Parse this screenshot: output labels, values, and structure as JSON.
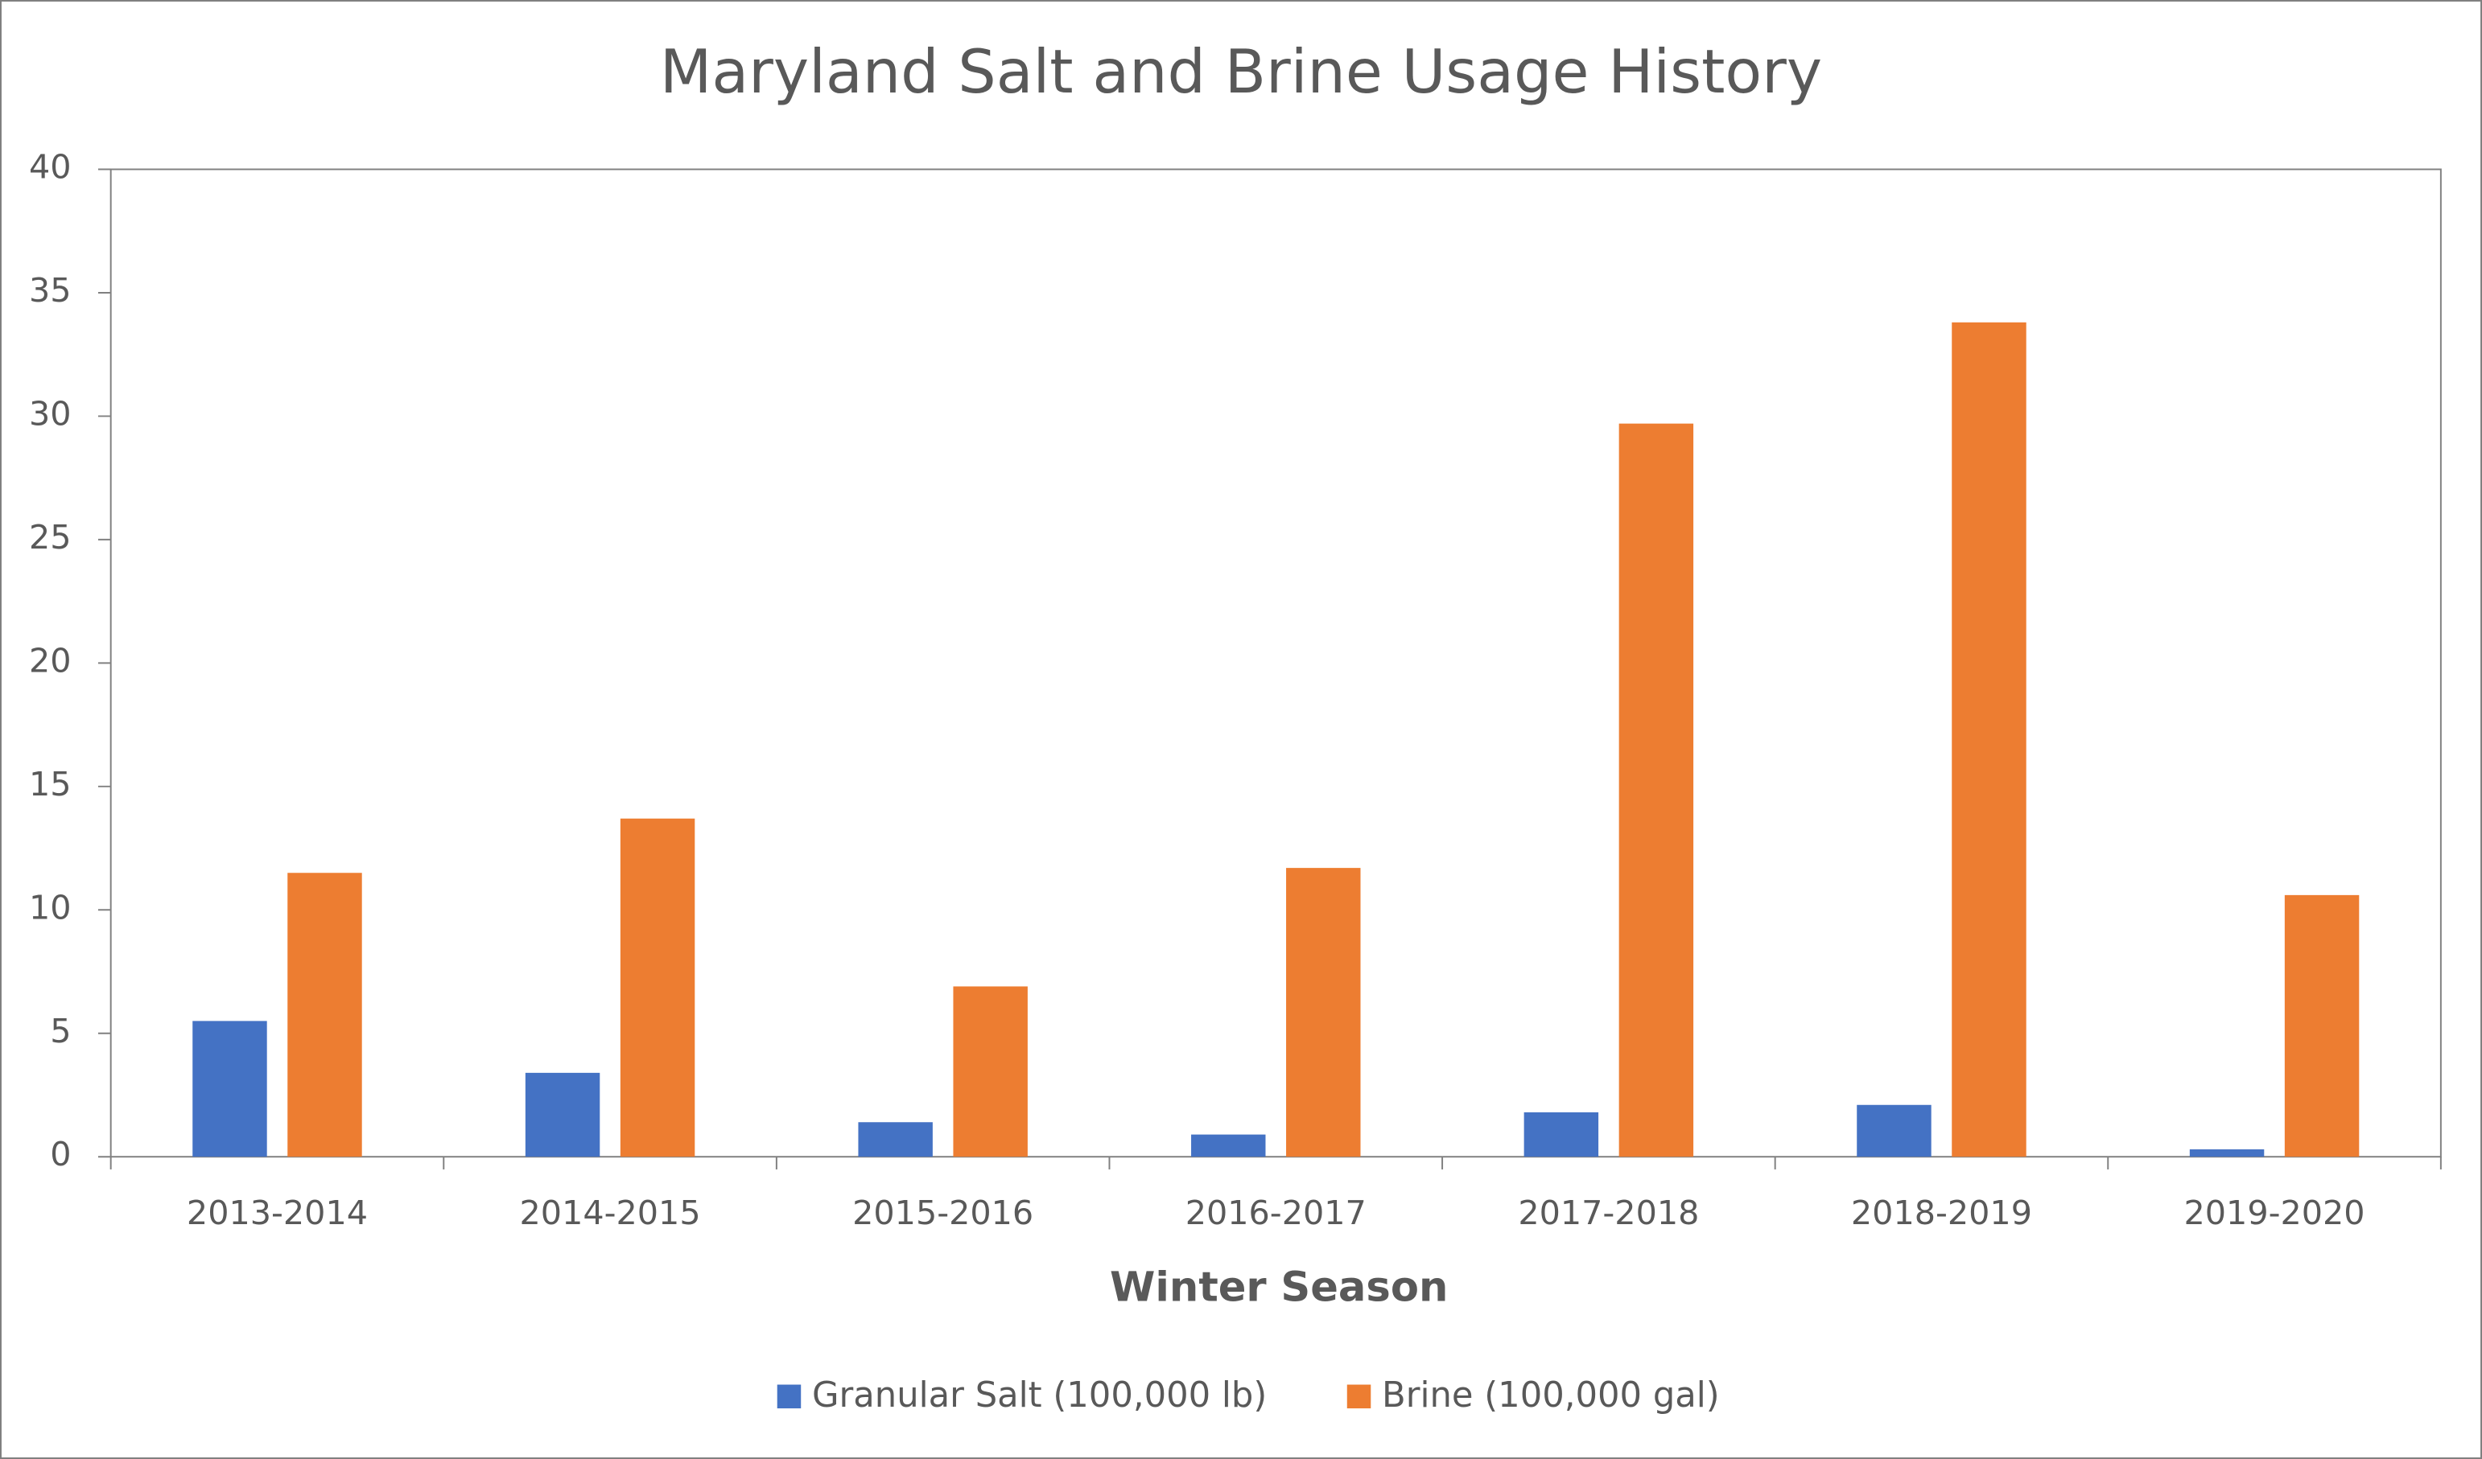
{
  "chart_data": {
    "type": "bar",
    "title": "Maryland Salt and Brine Usage History",
    "x_label": "Winter Season",
    "categories": [
      "2013-2014",
      "2014-2015",
      "2015-2016",
      "2016-2017",
      "2017-2018",
      "2018-2019",
      "2019-2020"
    ],
    "series": [
      {
        "name": "Granular Salt (100,000 lb)",
        "color": "#4472c4",
        "values": [
          5.5,
          3.4,
          1.4,
          0.9,
          1.8,
          2.1,
          0.3
        ]
      },
      {
        "name": "Brine (100,000 gal)",
        "color": "#ed7d31",
        "values": [
          11.5,
          13.7,
          6.9,
          11.7,
          29.7,
          33.8,
          10.6
        ]
      }
    ],
    "ylim": [
      0,
      40
    ],
    "yticks": [
      0,
      5,
      10,
      15,
      20,
      25,
      30,
      35,
      40
    ],
    "legend": "bottom"
  }
}
